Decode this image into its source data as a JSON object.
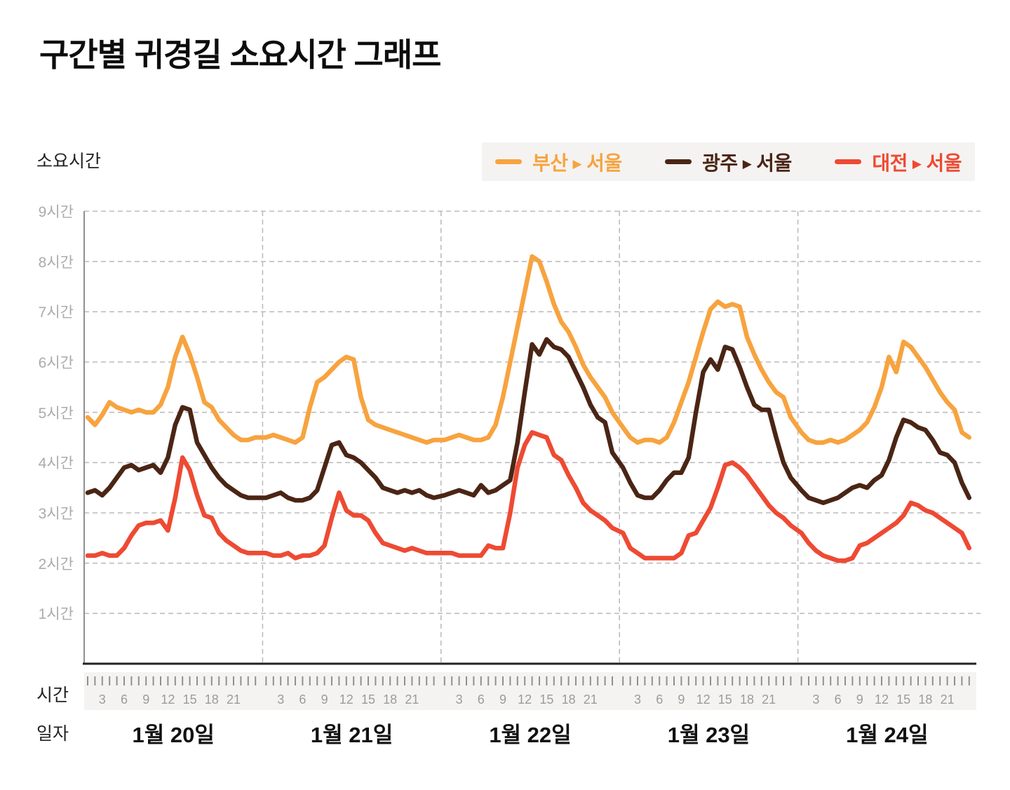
{
  "title": "구간별 귀경길 소요시간 그래프",
  "y_axis": {
    "title": "소요시간",
    "tick_labels": [
      "9시간",
      "8시간",
      "7시간",
      "6시간",
      "5시간",
      "4시간",
      "3시간",
      "2시간",
      "1시간"
    ],
    "range": [
      0,
      9
    ]
  },
  "x_axis": {
    "row_label_hours": "시간",
    "row_label_dates": "일자",
    "hour_tick_numbers": [
      3,
      6,
      9,
      12,
      15,
      18,
      21
    ],
    "hours_per_day": 24,
    "dates": [
      "1월 20일",
      "1월 21일",
      "1월 22일",
      "1월 23일",
      "1월 24일"
    ]
  },
  "legend": [
    {
      "id": "busan-seoul",
      "from": "부산",
      "to": "서울",
      "label": "부산 ▶ 서울",
      "color": "#F7A33F"
    },
    {
      "id": "gwangju-seoul",
      "from": "광주",
      "to": "서울",
      "label": "광주 ▶ 서울",
      "color": "#4A2515"
    },
    {
      "id": "daejeon-seoul",
      "from": "대전",
      "to": "서울",
      "label": "대전 ▶ 서울",
      "color": "#EE4A33"
    }
  ],
  "colors": {
    "grid": "#bcbcbc",
    "left_axis": "#8f8f8f",
    "baseline": "#222222",
    "tick_mark": "#909090",
    "hour_label": "#9b9b9b",
    "y_tick_label": "#ababab",
    "strip_bg": "#f4f3f1",
    "legend_bg": "#f4f3f1",
    "title": "#0d0d0d",
    "text": "#222222"
  },
  "chart_data": {
    "type": "line",
    "title": "구간별 귀경길 소요시간 그래프",
    "ylabel": "소요시간",
    "y_unit": "시간",
    "ylim": [
      0,
      9
    ],
    "grid": "dashed horizontal per hour, dashed vertical per day boundary",
    "legend_position": "top-right",
    "x_structure": "5 days × 24 hourly samples (hour 1–24 per day)",
    "days": [
      "1월 20일",
      "1월 21일",
      "1월 22일",
      "1월 23일",
      "1월 24일"
    ],
    "hours_per_day": 24,
    "series": [
      {
        "id": "busan-seoul",
        "name": "부산 ▶ 서울",
        "color": "#F7A33F",
        "values_by_day": [
          [
            4.9,
            4.75,
            4.95,
            5.2,
            5.1,
            5.05,
            5.0,
            5.05,
            5.0,
            5.0,
            5.15,
            5.5,
            6.1,
            6.5,
            6.15,
            5.7,
            5.2,
            5.1,
            4.85,
            4.7,
            4.55,
            4.45,
            4.45,
            4.5
          ],
          [
            4.5,
            4.55,
            4.5,
            4.45,
            4.4,
            4.5,
            5.1,
            5.6,
            5.7,
            5.85,
            6.0,
            6.1,
            6.05,
            5.3,
            4.85,
            4.75,
            4.7,
            4.65,
            4.6,
            4.55,
            4.5,
            4.45,
            4.4,
            4.45
          ],
          [
            4.45,
            4.5,
            4.55,
            4.5,
            4.45,
            4.45,
            4.5,
            4.75,
            5.3,
            6.0,
            6.7,
            7.4,
            8.1,
            8.0,
            7.6,
            7.15,
            6.8,
            6.6,
            6.3,
            5.95,
            5.7,
            5.5,
            5.3,
            5.0
          ],
          [
            4.7,
            4.5,
            4.4,
            4.45,
            4.45,
            4.4,
            4.5,
            4.8,
            5.2,
            5.6,
            6.1,
            6.6,
            7.05,
            7.2,
            7.1,
            7.15,
            7.1,
            6.5,
            6.15,
            5.85,
            5.6,
            5.4,
            5.3,
            4.9
          ],
          [
            4.6,
            4.45,
            4.4,
            4.4,
            4.45,
            4.4,
            4.45,
            4.55,
            4.65,
            4.8,
            5.1,
            5.5,
            6.1,
            5.8,
            6.4,
            6.3,
            6.1,
            5.9,
            5.65,
            5.4,
            5.2,
            5.05,
            4.6,
            4.5
          ]
        ]
      },
      {
        "id": "gwangju-seoul",
        "name": "광주 ▶ 서울",
        "color": "#4A2515",
        "values_by_day": [
          [
            3.4,
            3.45,
            3.35,
            3.5,
            3.7,
            3.9,
            3.95,
            3.85,
            3.9,
            3.95,
            3.8,
            4.1,
            4.75,
            5.1,
            5.05,
            4.4,
            4.15,
            3.9,
            3.7,
            3.55,
            3.45,
            3.35,
            3.3,
            3.3
          ],
          [
            3.3,
            3.35,
            3.4,
            3.3,
            3.25,
            3.25,
            3.3,
            3.45,
            3.9,
            4.35,
            4.4,
            4.15,
            4.1,
            4.0,
            3.85,
            3.7,
            3.5,
            3.45,
            3.4,
            3.45,
            3.4,
            3.45,
            3.35,
            3.3
          ],
          [
            3.35,
            3.4,
            3.45,
            3.4,
            3.35,
            3.55,
            3.4,
            3.45,
            3.55,
            3.65,
            4.4,
            5.4,
            6.35,
            6.15,
            6.45,
            6.3,
            6.25,
            6.1,
            5.8,
            5.5,
            5.15,
            4.9,
            4.8,
            4.2
          ],
          [
            3.9,
            3.6,
            3.35,
            3.3,
            3.3,
            3.45,
            3.65,
            3.8,
            3.8,
            4.1,
            5.0,
            5.8,
            6.05,
            5.85,
            6.3,
            6.25,
            5.9,
            5.5,
            5.15,
            5.05,
            5.05,
            4.5,
            4.0,
            3.7
          ],
          [
            3.45,
            3.3,
            3.25,
            3.2,
            3.25,
            3.3,
            3.4,
            3.5,
            3.55,
            3.5,
            3.65,
            3.75,
            4.05,
            4.5,
            4.85,
            4.8,
            4.7,
            4.65,
            4.45,
            4.2,
            4.15,
            4.0,
            3.6,
            3.3
          ]
        ]
      },
      {
        "id": "daejeon-seoul",
        "name": "대전 ▶ 서울",
        "color": "#EE4A33",
        "values_by_day": [
          [
            2.15,
            2.15,
            2.2,
            2.15,
            2.15,
            2.3,
            2.55,
            2.75,
            2.8,
            2.8,
            2.85,
            2.65,
            3.3,
            4.1,
            3.85,
            3.35,
            2.95,
            2.9,
            2.6,
            2.45,
            2.35,
            2.25,
            2.2,
            2.2
          ],
          [
            2.2,
            2.15,
            2.15,
            2.2,
            2.1,
            2.15,
            2.15,
            2.2,
            2.35,
            2.9,
            3.4,
            3.05,
            2.95,
            2.95,
            2.85,
            2.6,
            2.4,
            2.35,
            2.3,
            2.25,
            2.3,
            2.25,
            2.2,
            2.2
          ],
          [
            2.2,
            2.2,
            2.15,
            2.15,
            2.15,
            2.15,
            2.35,
            2.3,
            2.3,
            3.0,
            3.9,
            4.35,
            4.6,
            4.55,
            4.5,
            4.15,
            4.05,
            3.75,
            3.5,
            3.2,
            3.05,
            2.95,
            2.85,
            2.7
          ],
          [
            2.6,
            2.3,
            2.2,
            2.1,
            2.1,
            2.1,
            2.1,
            2.1,
            2.2,
            2.55,
            2.6,
            2.85,
            3.1,
            3.5,
            3.95,
            4.0,
            3.9,
            3.75,
            3.55,
            3.35,
            3.15,
            3.0,
            2.9,
            2.75
          ],
          [
            2.6,
            2.4,
            2.25,
            2.15,
            2.1,
            2.05,
            2.05,
            2.1,
            2.35,
            2.4,
            2.5,
            2.6,
            2.7,
            2.8,
            2.95,
            3.2,
            3.15,
            3.05,
            3.0,
            2.9,
            2.8,
            2.7,
            2.6,
            2.3
          ]
        ]
      }
    ]
  }
}
